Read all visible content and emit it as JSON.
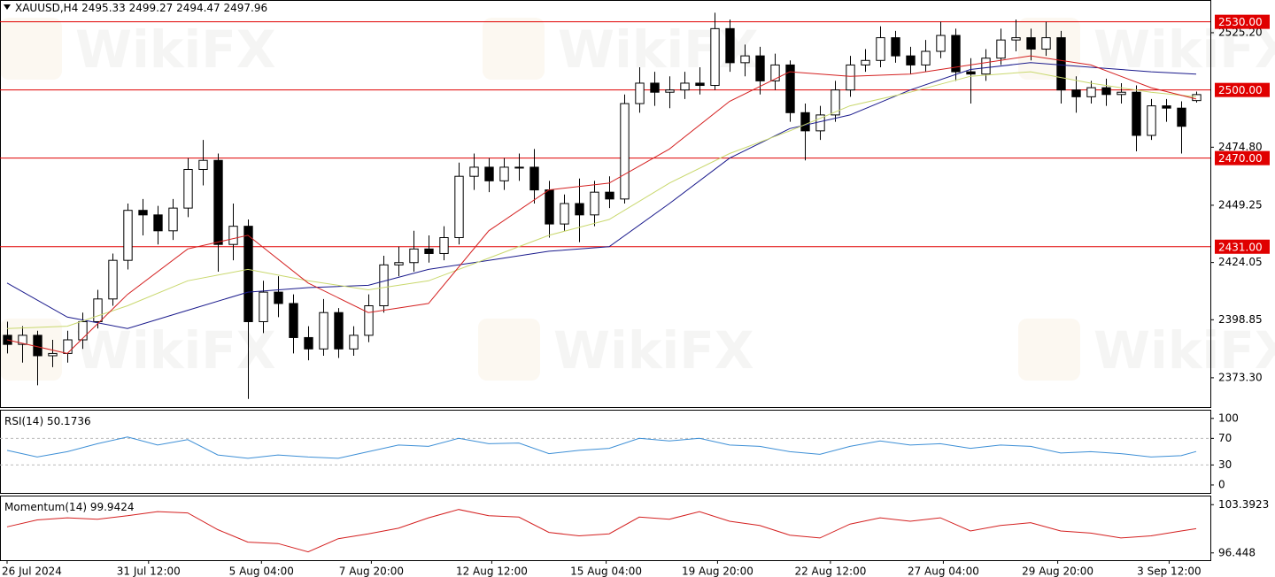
{
  "header": {
    "symbol": "XAUUSD,H4",
    "ohlc": [
      2495.33,
      2499.27,
      2494.47,
      2497.96
    ]
  },
  "watermark": "WikiFX",
  "chart_data": [
    {
      "type": "candlestick",
      "xlim": [
        -0.47,
        79.94
      ],
      "ylim": [
        2360.4,
        2539.6
      ],
      "yticks": [
        {
          "value": 2525.2,
          "label": "2525.20"
        },
        {
          "value": 2474.8,
          "label": "2474.80"
        },
        2449.25,
        2424.05,
        2398.85,
        {
          "value": 2373.3,
          "label": "2373.30"
        }
      ],
      "levels": [
        {
          "value": 2530,
          "label": "2530.00"
        },
        {
          "value": 2500,
          "label": "2500.00"
        },
        {
          "value": 2470,
          "label": "2470.00"
        },
        {
          "value": 2431,
          "label": "2431.00"
        }
      ],
      "level_color": "#e00000",
      "up_color": "#ffffff",
      "down_color": "#000000",
      "candles": [
        [
          2392,
          2398,
          2384,
          2388
        ],
        [
          2388,
          2396,
          2380,
          2392
        ],
        [
          2392,
          2394,
          2370,
          2383
        ],
        [
          2383,
          2390,
          2378,
          2384
        ],
        [
          2384,
          2394,
          2380,
          2390
        ],
        [
          2390,
          2402,
          2386,
          2398
        ],
        [
          2398,
          2412,
          2395,
          2408
        ],
        [
          2408,
          2428,
          2405,
          2425
        ],
        [
          2425,
          2450,
          2421,
          2447
        ],
        [
          2447,
          2452,
          2436,
          2445
        ],
        [
          2445,
          2449,
          2432,
          2438
        ],
        [
          2438,
          2452,
          2434,
          2448
        ],
        [
          2448,
          2470,
          2444,
          2465
        ],
        [
          2465,
          2478,
          2458,
          2469
        ],
        [
          2469,
          2472,
          2420,
          2432
        ],
        [
          2432,
          2450,
          2425,
          2440
        ],
        [
          2440,
          2443,
          2364,
          2398
        ],
        [
          2398,
          2416,
          2393,
          2411
        ],
        [
          2411,
          2418,
          2400,
          2406
        ],
        [
          2406,
          2410,
          2384,
          2391
        ],
        [
          2391,
          2396,
          2381,
          2386
        ],
        [
          2386,
          2408,
          2383,
          2402
        ],
        [
          2402,
          2404,
          2382,
          2386
        ],
        [
          2386,
          2396,
          2383,
          2392
        ],
        [
          2392,
          2410,
          2389,
          2405
        ],
        [
          2405,
          2427,
          2402,
          2423
        ],
        [
          2423,
          2431,
          2418,
          2424
        ],
        [
          2424,
          2438,
          2420,
          2430
        ],
        [
          2430,
          2436,
          2424,
          2428
        ],
        [
          2428,
          2440,
          2425,
          2435
        ],
        [
          2435,
          2468,
          2432,
          2462
        ],
        [
          2462,
          2472,
          2456,
          2466
        ],
        [
          2466,
          2470,
          2455,
          2460
        ],
        [
          2460,
          2470,
          2456,
          2466
        ],
        [
          2466,
          2472,
          2460,
          2466
        ],
        [
          2466,
          2474,
          2450,
          2456
        ],
        [
          2456,
          2460,
          2435,
          2441
        ],
        [
          2441,
          2454,
          2438,
          2450
        ],
        [
          2450,
          2461,
          2433,
          2445
        ],
        [
          2445,
          2460,
          2440,
          2455
        ],
        [
          2455,
          2462,
          2448,
          2452
        ],
        [
          2452,
          2498,
          2450,
          2494
        ],
        [
          2494,
          2510,
          2490,
          2503
        ],
        [
          2503,
          2508,
          2493,
          2499
        ],
        [
          2499,
          2506,
          2492,
          2500
        ],
        [
          2500,
          2508,
          2496,
          2503
        ],
        [
          2503,
          2510,
          2498,
          2502
        ],
        [
          2502,
          2534,
          2500,
          2527
        ],
        [
          2527,
          2531,
          2508,
          2512
        ],
        [
          2512,
          2520,
          2506,
          2515
        ],
        [
          2515,
          2519,
          2498,
          2504
        ],
        [
          2504,
          2516,
          2500,
          2511
        ],
        [
          2511,
          2513,
          2486,
          2490
        ],
        [
          2490,
          2494,
          2469,
          2482
        ],
        [
          2482,
          2493,
          2478,
          2489
        ],
        [
          2489,
          2504,
          2486,
          2500
        ],
        [
          2500,
          2515,
          2497,
          2511
        ],
        [
          2511,
          2518,
          2508,
          2513
        ],
        [
          2513,
          2528,
          2510,
          2523
        ],
        [
          2523,
          2526,
          2512,
          2515
        ],
        [
          2515,
          2519,
          2507,
          2511
        ],
        [
          2511,
          2522,
          2508,
          2517
        ],
        [
          2517,
          2530,
          2514,
          2524
        ],
        [
          2524,
          2527,
          2504,
          2508
        ],
        [
          2508,
          2514,
          2494,
          2507
        ],
        [
          2507,
          2518,
          2504,
          2514
        ],
        [
          2514,
          2527,
          2511,
          2522
        ],
        [
          2522,
          2531,
          2517,
          2523
        ],
        [
          2523,
          2527,
          2513,
          2518
        ],
        [
          2518,
          2530,
          2515,
          2523
        ],
        [
          2523,
          2526,
          2494,
          2500
        ],
        [
          2500,
          2506,
          2490,
          2497
        ],
        [
          2497,
          2504,
          2494,
          2501
        ],
        [
          2501,
          2505,
          2493,
          2498
        ],
        [
          2498,
          2503,
          2494,
          2499
        ],
        [
          2499,
          2502,
          2473,
          2480
        ],
        [
          2480,
          2496,
          2478,
          2493
        ],
        [
          2493,
          2496,
          2486,
          2492
        ],
        [
          2492,
          2495,
          2472,
          2484
        ],
        [
          2495.33,
          2499.27,
          2494.47,
          2497.96
        ]
      ],
      "series": [
        {
          "color": "#1a1a8c",
          "x": [
            0,
            4,
            8,
            12,
            16,
            20,
            24,
            28,
            32,
            36,
            40,
            44,
            48,
            52,
            56,
            60,
            64,
            68,
            72,
            76,
            79
          ],
          "values": [
            2415,
            2400,
            2395,
            2403,
            2411,
            2413,
            2414,
            2421,
            2425,
            2429,
            2431,
            2450,
            2470,
            2483,
            2489,
            2500,
            2509,
            2512,
            2510,
            2508,
            2507
          ]
        },
        {
          "color": "#c9d86e",
          "x": [
            0,
            4,
            8,
            12,
            16,
            20,
            24,
            28,
            32,
            36,
            40,
            44,
            48,
            52,
            56,
            60,
            64,
            68,
            72,
            76,
            79
          ],
          "values": [
            2395,
            2396,
            2405,
            2416,
            2421,
            2416,
            2412,
            2416,
            2426,
            2436,
            2443,
            2459,
            2472,
            2482,
            2493,
            2499,
            2506,
            2508,
            2503,
            2499,
            2497
          ]
        },
        {
          "color": "#d42020",
          "x": [
            0,
            4,
            8,
            12,
            16,
            20,
            24,
            28,
            32,
            36,
            40,
            44,
            48,
            52,
            56,
            60,
            64,
            68,
            72,
            76,
            79
          ],
          "values": [
            2390,
            2384,
            2410,
            2430,
            2436,
            2415,
            2402,
            2406,
            2438,
            2456,
            2459,
            2474,
            2495,
            2508,
            2506,
            2507,
            2511,
            2515,
            2511,
            2501,
            2496
          ]
        }
      ]
    },
    {
      "type": "line",
      "name": "RSI(14)",
      "value": 50.1736,
      "xlim": [
        -0.47,
        79.94
      ],
      "ylim": [
        -12,
        113
      ],
      "yticks": [
        100,
        70,
        30,
        0
      ],
      "dashed_levels": [
        70,
        30
      ],
      "series": [
        {
          "color": "#3d8fd6",
          "x": [
            0,
            2,
            4,
            6,
            8,
            10,
            12,
            14,
            16,
            18,
            20,
            22,
            24,
            26,
            28,
            30,
            32,
            34,
            36,
            38,
            40,
            42,
            44,
            46,
            48,
            50,
            52,
            54,
            56,
            58,
            60,
            62,
            64,
            66,
            68,
            70,
            72,
            74,
            76,
            78,
            79
          ],
          "values": [
            52,
            42,
            50,
            62,
            72,
            60,
            68,
            45,
            40,
            45,
            42,
            40,
            50,
            60,
            58,
            70,
            62,
            63,
            47,
            52,
            55,
            70,
            66,
            70,
            60,
            58,
            50,
            46,
            58,
            66,
            60,
            62,
            55,
            60,
            58,
            48,
            50,
            47,
            42,
            44,
            50.17
          ]
        }
      ]
    },
    {
      "type": "line",
      "name": "Momentum(14)",
      "value": 99.9424,
      "xlim": [
        -0.47,
        79.94
      ],
      "ylim": [
        95.4,
        104.7
      ],
      "yticks": [
        103.3923,
        96.448
      ],
      "xticks": [
        {
          "value": 0,
          "label": "26 Jul 2024"
        },
        {
          "value": 9.4,
          "label": "31 Jul 12:00"
        },
        {
          "value": 16.9,
          "label": "5 Aug 04:00"
        },
        {
          "value": 24.2,
          "label": "7 Aug 20:00"
        },
        {
          "value": 32.2,
          "label": "12 Aug 12:00"
        },
        {
          "value": 39.8,
          "label": "15 Aug 04:00"
        },
        {
          "value": 47.2,
          "label": "19 Aug 20:00"
        },
        {
          "value": 54.7,
          "label": "22 Aug 12:00"
        },
        {
          "value": 62.2,
          "label": "27 Aug 04:00"
        },
        {
          "value": 69.8,
          "label": "29 Aug 20:00"
        },
        {
          "value": 77.2,
          "label": "3 Sep 12:00"
        }
      ],
      "series": [
        {
          "color": "#d42020",
          "x": [
            0,
            2,
            4,
            6,
            8,
            10,
            12,
            14,
            16,
            18,
            20,
            22,
            24,
            26,
            28,
            30,
            32,
            34,
            36,
            38,
            40,
            42,
            44,
            46,
            48,
            50,
            52,
            54,
            56,
            58,
            60,
            62,
            64,
            66,
            68,
            70,
            72,
            74,
            76,
            78,
            79
          ],
          "values": [
            100.2,
            101.2,
            101.5,
            101.3,
            101.8,
            102.4,
            102.2,
            99.8,
            98.0,
            97.8,
            96.6,
            98.5,
            99.2,
            100.0,
            101.5,
            102.7,
            101.8,
            101.6,
            99.4,
            98.9,
            99.2,
            101.6,
            101.3,
            102.4,
            101.0,
            100.4,
            99.0,
            98.6,
            100.6,
            101.5,
            101.0,
            101.5,
            99.6,
            100.4,
            100.8,
            99.6,
            99.3,
            98.6,
            98.9,
            99.6,
            99.94
          ]
        }
      ]
    }
  ]
}
